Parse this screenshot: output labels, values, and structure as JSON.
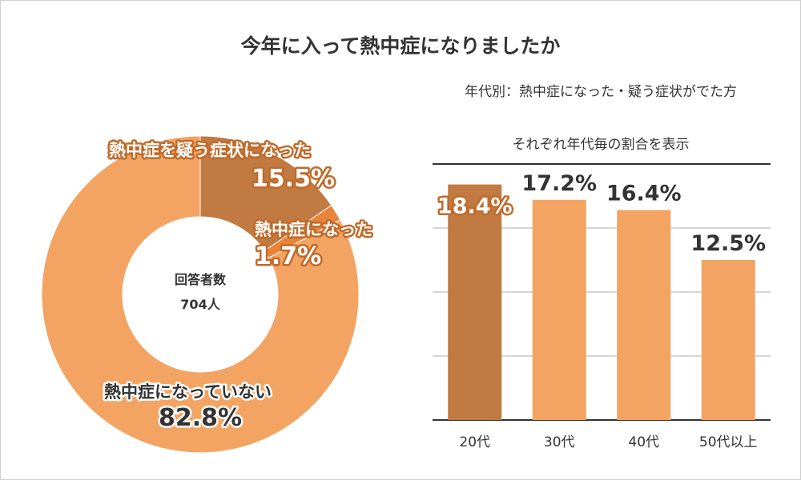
{
  "title": "今年に入って熱中症になりましたか",
  "colors": {
    "light": "#f3a462",
    "dark": "#c07a42",
    "mid": "#e8833a",
    "accent_text": "#c06a2a",
    "stroke": "#ffffff",
    "axis": "#333333",
    "grid": "#d6d6d6"
  },
  "chart_data": [
    {
      "type": "pie",
      "title": "",
      "center_label": "回答者数",
      "center_value": "704人",
      "slices": [
        {
          "label": "熱中症を疑う症状になった",
          "value": 15.5,
          "display": "15.5%",
          "color": "#c07a42"
        },
        {
          "label": "熱中症になった",
          "value": 1.7,
          "display": "1.7%",
          "color": "#e8833a"
        },
        {
          "label": "熱中症になっていない",
          "value": 82.8,
          "display": "82.8%",
          "color": "#f3a462"
        }
      ]
    },
    {
      "type": "bar",
      "title": "年代別：熱中症になった・疑う症状がでた方",
      "subtitle": "それぞれ年代毎の割合を表示",
      "categories": [
        "20代",
        "30代",
        "40代",
        "50代以上"
      ],
      "values": [
        18.4,
        17.2,
        16.4,
        12.5
      ],
      "labels": [
        "18.4%",
        "17.2%",
        "16.4%",
        "12.5%"
      ],
      "colors": [
        "#c07a42",
        "#f3a462",
        "#f3a462",
        "#f3a462"
      ],
      "ylim": [
        0,
        20
      ],
      "grid": true
    }
  ]
}
